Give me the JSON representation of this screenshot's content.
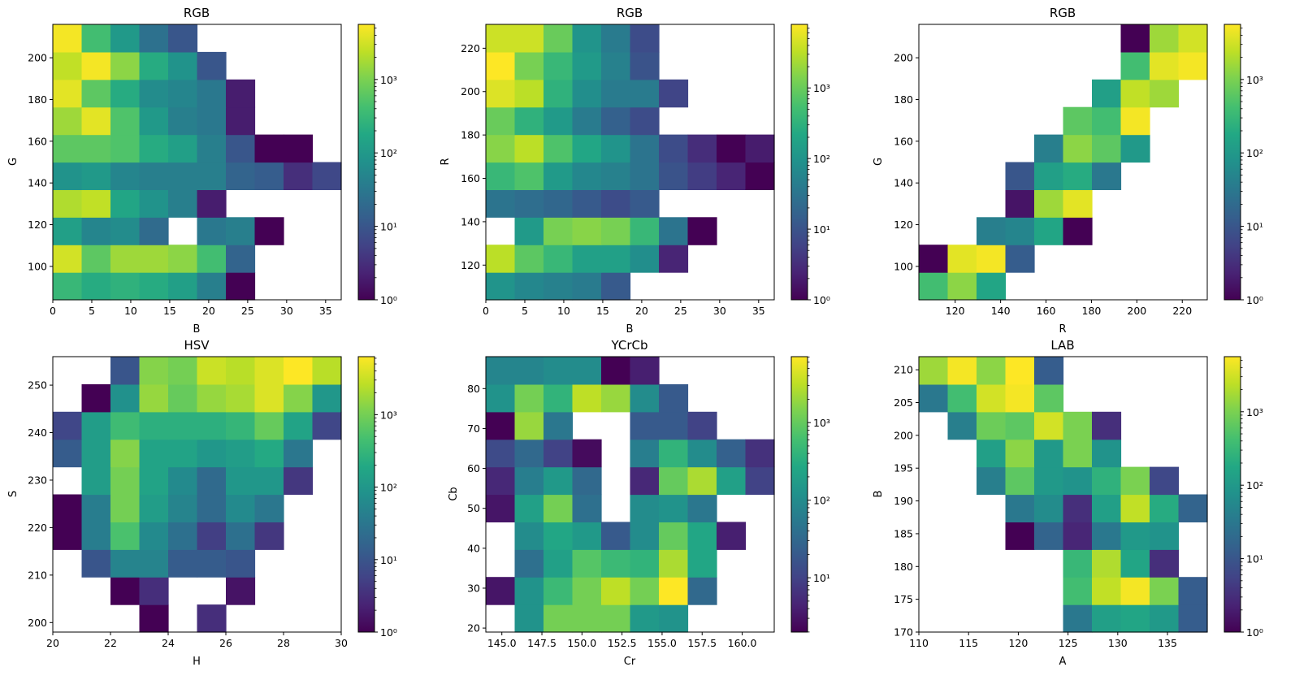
{
  "figure": {
    "width": 1610,
    "height": 853
  },
  "colorbar": {
    "ticks_log": [
      0,
      1,
      2,
      3
    ],
    "tick_labels": [
      "10⁰",
      "10¹",
      "10²",
      "10³"
    ],
    "colormap": "viridis"
  },
  "chart_data": [
    {
      "type": "heatmap",
      "title": "RGB",
      "xlabel": "B",
      "ylabel": "G",
      "xlim": [
        0,
        37
      ],
      "ylim": [
        84,
        216
      ],
      "xticks": [
        0,
        5,
        10,
        15,
        20,
        25,
        30,
        35
      ],
      "yticks": [
        100,
        120,
        140,
        160,
        180,
        200
      ],
      "x_edges": [
        0,
        3.7,
        7.4,
        11.1,
        14.8,
        18.5,
        22.2,
        25.9,
        29.6,
        33.3,
        37
      ],
      "y_edges": [
        84,
        97.2,
        110.4,
        123.6,
        136.8,
        150,
        163.2,
        176.4,
        189.6,
        202.8,
        216
      ],
      "log_max": 3.75,
      "colorbar_ticks": [
        0,
        1,
        2,
        3
      ],
      "log_values": [
        [
          2.5,
          2.3,
          2.4,
          2.3,
          2.1,
          1.6,
          0,
          null,
          null,
          null
        ],
        [
          3.5,
          2.8,
          3.2,
          3.2,
          3.1,
          2.6,
          1.2,
          null,
          null,
          null
        ],
        [
          2.1,
          1.7,
          1.8,
          1.3,
          null,
          1.5,
          1.6,
          0,
          null,
          null
        ],
        [
          3.3,
          3.4,
          2.2,
          1.9,
          1.6,
          0.3,
          null,
          null,
          null,
          null
        ],
        [
          1.9,
          2.0,
          1.7,
          1.6,
          1.6,
          1.6,
          1.2,
          1.1,
          0.5,
          0.8
        ],
        [
          2.8,
          2.8,
          2.7,
          2.3,
          2.1,
          1.6,
          1.0,
          0,
          0,
          null
        ],
        [
          3.2,
          3.6,
          2.7,
          2.0,
          1.6,
          1.5,
          0.3,
          null,
          null,
          null
        ],
        [
          3.6,
          2.8,
          2.3,
          1.8,
          1.7,
          1.5,
          0.3,
          null,
          null,
          null
        ],
        [
          3.4,
          3.7,
          3.1,
          2.3,
          1.9,
          1.0,
          null,
          null,
          null,
          null
        ],
        [
          3.7,
          2.6,
          2.0,
          1.4,
          1.0,
          null,
          null,
          null,
          null,
          null
        ]
      ]
    },
    {
      "type": "heatmap",
      "title": "RGB",
      "xlabel": "B",
      "ylabel": "R",
      "xlim": [
        0,
        37
      ],
      "ylim": [
        104,
        231
      ],
      "xticks": [
        0,
        5,
        10,
        15,
        20,
        25,
        30,
        35
      ],
      "yticks": [
        120,
        140,
        160,
        180,
        200,
        220
      ],
      "x_edges": [
        0,
        3.7,
        7.4,
        11.1,
        14.8,
        18.5,
        22.2,
        25.9,
        29.6,
        33.3,
        37
      ],
      "y_edges": [
        104,
        116.7,
        129.4,
        142.1,
        154.8,
        167.5,
        180.2,
        192.9,
        205.6,
        218.3,
        231
      ],
      "log_max": 3.9,
      "colorbar_ticks": [
        0,
        1,
        2,
        3
      ],
      "log_values": [
        [
          2.0,
          1.8,
          1.7,
          1.6,
          1.1,
          null,
          null,
          null,
          null,
          null
        ],
        [
          3.5,
          2.9,
          2.6,
          2.2,
          2.2,
          1.9,
          0.4,
          null,
          null,
          null
        ],
        [
          null,
          2.1,
          3.1,
          3.2,
          3.1,
          2.6,
          1.5,
          0,
          null,
          null
        ],
        [
          1.5,
          1.4,
          1.3,
          1.1,
          0.9,
          1.1,
          null,
          null,
          null,
          null
        ],
        [
          2.6,
          2.8,
          2.1,
          1.8,
          1.7,
          1.5,
          1.0,
          0.7,
          0.4,
          0
        ],
        [
          3.2,
          3.5,
          2.8,
          2.3,
          2.0,
          1.5,
          0.9,
          0.5,
          0,
          0.3
        ],
        [
          3.0,
          2.5,
          2.1,
          1.6,
          1.2,
          0.9,
          null,
          null,
          null,
          null
        ],
        [
          3.7,
          3.5,
          2.5,
          1.9,
          1.6,
          1.6,
          0.8,
          null,
          null,
          null
        ],
        [
          3.9,
          3.1,
          2.6,
          2.1,
          1.7,
          1.0,
          null,
          null,
          null,
          null
        ],
        [
          3.6,
          3.6,
          3.0,
          2.0,
          1.6,
          0.9,
          null,
          null,
          null,
          null
        ]
      ]
    },
    {
      "type": "heatmap",
      "title": "RGB",
      "xlabel": "R",
      "ylabel": "G",
      "xlim": [
        104,
        231
      ],
      "ylim": [
        84,
        216
      ],
      "xticks": [
        120,
        140,
        160,
        180,
        200,
        220
      ],
      "yticks": [
        100,
        120,
        140,
        160,
        180,
        200
      ],
      "x_edges": [
        104,
        116.7,
        129.4,
        142.1,
        154.8,
        167.5,
        180.2,
        192.9,
        205.6,
        218.3,
        231
      ],
      "y_edges": [
        84,
        97.2,
        110.4,
        123.6,
        136.8,
        150,
        163.2,
        176.4,
        189.6,
        202.8,
        216
      ],
      "log_max": 3.75,
      "colorbar_ticks": [
        0,
        1,
        2,
        3
      ],
      "log_values": [
        [
          2.6,
          3.1,
          2.2,
          null,
          null,
          null,
          null,
          null,
          null,
          null
        ],
        [
          0,
          3.6,
          3.7,
          1.1,
          null,
          null,
          null,
          null,
          null,
          null
        ],
        [
          null,
          null,
          1.6,
          1.7,
          2.2,
          0,
          null,
          null,
          null,
          null
        ],
        [
          null,
          null,
          null,
          0.2,
          3.2,
          3.6,
          null,
          null,
          null,
          null
        ],
        [
          null,
          null,
          null,
          1.0,
          2.1,
          2.3,
          1.5,
          null,
          null,
          null
        ],
        [
          null,
          null,
          null,
          null,
          1.6,
          3.1,
          2.8,
          2.0,
          null,
          null
        ],
        [
          null,
          null,
          null,
          null,
          null,
          2.8,
          2.6,
          3.7,
          null,
          null
        ],
        [
          null,
          null,
          null,
          null,
          null,
          null,
          2.1,
          3.4,
          3.2,
          null
        ],
        [
          null,
          null,
          null,
          null,
          null,
          null,
          null,
          2.6,
          3.6,
          3.7
        ],
        [
          null,
          null,
          null,
          null,
          null,
          null,
          null,
          0,
          3.2,
          3.5
        ]
      ]
    },
    {
      "type": "heatmap",
      "title": "HSV",
      "xlabel": "H",
      "ylabel": "S",
      "xlim": [
        20,
        30
      ],
      "ylim": [
        198,
        256
      ],
      "xticks": [
        20,
        22,
        24,
        26,
        28,
        30
      ],
      "yticks": [
        200,
        210,
        220,
        230,
        240,
        250
      ],
      "x_edges": [
        20,
        21,
        22,
        23,
        24,
        25,
        26,
        27,
        28,
        29,
        30
      ],
      "y_edges": [
        198,
        203.8,
        209.6,
        215.4,
        221.2,
        227,
        232.8,
        238.6,
        244.4,
        250.2,
        256
      ],
      "log_max": 3.8,
      "colorbar_ticks": [
        0,
        1,
        2,
        3
      ],
      "log_values": [
        [
          null,
          null,
          null,
          0,
          null,
          0.5,
          null,
          null,
          null,
          null
        ],
        [
          null,
          null,
          0,
          0.5,
          null,
          null,
          0.2,
          null,
          null,
          null
        ],
        [
          null,
          1.0,
          1.7,
          1.7,
          1.1,
          1.1,
          1.0,
          null,
          null,
          null
        ],
        [
          0,
          1.6,
          2.7,
          1.8,
          1.4,
          0.7,
          1.4,
          0.6,
          null,
          null
        ],
        [
          0,
          1.6,
          3.0,
          2.1,
          1.7,
          1.3,
          1.8,
          1.5,
          null,
          null
        ],
        [
          null,
          2.1,
          3.0,
          2.2,
          1.8,
          1.3,
          2.0,
          2.0,
          0.6,
          null
        ],
        [
          1.1,
          2.1,
          3.1,
          2.2,
          2.2,
          2.0,
          2.1,
          2.3,
          1.5,
          null
        ],
        [
          0.8,
          2.1,
          2.6,
          2.4,
          2.4,
          2.4,
          2.5,
          2.9,
          2.2,
          0.8
        ],
        [
          null,
          0,
          1.9,
          3.2,
          2.9,
          3.2,
          3.3,
          3.6,
          3.1,
          2.0
        ],
        [
          null,
          null,
          1.0,
          3.1,
          3.0,
          3.5,
          3.4,
          3.6,
          3.8,
          3.4
        ]
      ]
    },
    {
      "type": "heatmap",
      "title": "YCrCb",
      "xlabel": "Cr",
      "ylabel": "Cb",
      "xlim": [
        144,
        162
      ],
      "ylim": [
        19,
        88
      ],
      "xticks": [
        145,
        147.5,
        150,
        152.5,
        155,
        157.5,
        160
      ],
      "xtick_labels": [
        "145.0",
        "147.5",
        "150.0",
        "152.5",
        "155.0",
        "157.5",
        "160.0"
      ],
      "yticks": [
        20,
        30,
        40,
        50,
        60,
        70,
        80
      ],
      "x_edges": [
        144,
        145.8,
        147.6,
        149.4,
        151.2,
        153,
        154.8,
        156.6,
        158.4,
        160.2,
        162
      ],
      "y_edges": [
        19,
        25.9,
        32.8,
        39.7,
        46.6,
        53.5,
        60.4,
        67.3,
        74.2,
        81.1,
        88
      ],
      "log_min": 0.3,
      "log_max": 3.85,
      "colorbar_ticks": [
        1,
        2,
        3
      ],
      "log_values": [
        [
          null,
          2.1,
          3.1,
          3.1,
          3.1,
          2.2,
          2.1,
          null,
          null,
          null
        ],
        [
          0.5,
          2.1,
          2.7,
          3.1,
          3.5,
          3.1,
          3.85,
          1.5,
          null,
          null
        ],
        [
          null,
          1.6,
          2.3,
          2.9,
          2.7,
          2.6,
          3.4,
          2.4,
          null,
          null
        ],
        [
          null,
          2.0,
          2.4,
          2.2,
          1.3,
          2.0,
          3.0,
          2.4,
          0.6,
          null
        ],
        [
          0.5,
          2.3,
          3.1,
          1.6,
          null,
          2.0,
          2.1,
          1.7,
          null,
          null
        ],
        [
          0.7,
          1.8,
          2.2,
          1.5,
          null,
          0.7,
          3.0,
          3.4,
          2.3,
          1.0
        ],
        [
          1.1,
          1.5,
          1.0,
          0.4,
          null,
          1.8,
          2.6,
          2.0,
          1.4,
          0.8
        ],
        [
          0.3,
          3.3,
          1.7,
          null,
          null,
          1.3,
          1.3,
          1.0,
          null,
          null
        ],
        [
          2.1,
          3.1,
          2.6,
          3.5,
          3.3,
          2.0,
          1.3,
          null,
          null,
          null
        ],
        [
          1.9,
          1.9,
          2.0,
          2.0,
          0.3,
          0.6,
          null,
          null,
          null,
          null
        ]
      ]
    },
    {
      "type": "heatmap",
      "title": "LAB",
      "xlabel": "A",
      "ylabel": "B",
      "xlim": [
        110,
        139
      ],
      "ylim": [
        170,
        212
      ],
      "xticks": [
        110,
        115,
        120,
        125,
        130,
        135
      ],
      "yticks": [
        170,
        175,
        180,
        185,
        190,
        195,
        200,
        205,
        210
      ],
      "x_edges": [
        110,
        112.9,
        115.8,
        118.7,
        121.6,
        124.5,
        127.4,
        130.3,
        133.2,
        136.1,
        139
      ],
      "y_edges": [
        170,
        174.2,
        178.4,
        182.6,
        186.8,
        191,
        195.2,
        199.4,
        203.6,
        207.8,
        212
      ],
      "log_max": 3.75,
      "colorbar_ticks": [
        0,
        1,
        2,
        3
      ],
      "log_values": [
        [
          null,
          null,
          null,
          null,
          null,
          1.5,
          2.1,
          2.2,
          2.0,
          1.1
        ],
        [
          null,
          null,
          null,
          null,
          null,
          2.6,
          3.4,
          3.7,
          3.0,
          1.1
        ],
        [
          null,
          null,
          null,
          null,
          null,
          2.5,
          3.3,
          2.2,
          0.5,
          null
        ],
        [
          null,
          null,
          null,
          0,
          1.2,
          0.4,
          1.5,
          2.0,
          1.9,
          null
        ],
        [
          null,
          null,
          null,
          1.5,
          1.8,
          0.5,
          2.1,
          3.4,
          2.3,
          1.2
        ],
        [
          null,
          null,
          1.6,
          2.8,
          2.0,
          1.9,
          2.4,
          3.0,
          0.8,
          null
        ],
        [
          null,
          null,
          2.1,
          3.1,
          2.0,
          3.0,
          1.9,
          null,
          null,
          null
        ],
        [
          null,
          1.6,
          2.9,
          2.8,
          3.5,
          3.0,
          0.5,
          null,
          null,
          null
        ],
        [
          1.5,
          2.6,
          3.5,
          3.7,
          2.8,
          null,
          null,
          null,
          null,
          null
        ],
        [
          3.2,
          3.7,
          3.1,
          3.75,
          1.1,
          null,
          null,
          null,
          null,
          null
        ]
      ]
    }
  ]
}
